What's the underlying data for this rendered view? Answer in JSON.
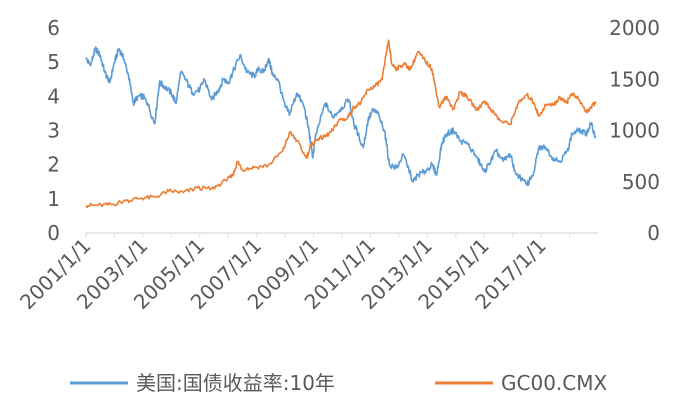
{
  "chart_data": {
    "type": "line",
    "title": "",
    "xlabel": "",
    "ylabel": "",
    "x_range": [
      "2001-01-01",
      "2018-12-31"
    ],
    "x_ticks": [
      "2001/1/1",
      "2003/1/1",
      "2005/1/1",
      "2007/1/1",
      "2009/1/1",
      "2011/1/1",
      "2013/1/1",
      "2015/1/1",
      "2017/1/1"
    ],
    "y_left": {
      "min": 0,
      "max": 6,
      "ticks": [
        "0",
        "1",
        "2",
        "3",
        "4",
        "5",
        "6"
      ]
    },
    "y_right": {
      "min": 0,
      "max": 2000,
      "ticks": [
        "0",
        "500",
        "1000",
        "1500",
        "2000"
      ]
    },
    "grid": false,
    "legend_position": "bottom",
    "series": [
      {
        "name": "美国:国债收益率:10年",
        "axis": "left",
        "color": "#5B9BD5",
        "points": [
          [
            "2001-01-01",
            5.1
          ],
          [
            "2001-03-01",
            4.9
          ],
          [
            "2001-05-01",
            5.4
          ],
          [
            "2001-07-01",
            5.2
          ],
          [
            "2001-09-01",
            4.7
          ],
          [
            "2001-11-01",
            4.4
          ],
          [
            "2002-01-01",
            5.0
          ],
          [
            "2002-03-01",
            5.4
          ],
          [
            "2002-05-01",
            5.1
          ],
          [
            "2002-07-01",
            4.6
          ],
          [
            "2002-09-01",
            3.8
          ],
          [
            "2002-11-01",
            4.0
          ],
          [
            "2003-01-01",
            4.0
          ],
          [
            "2003-03-01",
            3.8
          ],
          [
            "2003-06-01",
            3.2
          ],
          [
            "2003-08-01",
            4.4
          ],
          [
            "2003-10-01",
            4.3
          ],
          [
            "2004-01-01",
            4.1
          ],
          [
            "2004-03-01",
            3.8
          ],
          [
            "2004-05-01",
            4.7
          ],
          [
            "2004-07-01",
            4.5
          ],
          [
            "2004-10-01",
            4.1
          ],
          [
            "2005-01-01",
            4.2
          ],
          [
            "2005-03-01",
            4.5
          ],
          [
            "2005-06-01",
            3.9
          ],
          [
            "2005-09-01",
            4.2
          ],
          [
            "2005-11-01",
            4.5
          ],
          [
            "2006-01-01",
            4.4
          ],
          [
            "2006-03-01",
            4.7
          ],
          [
            "2006-06-01",
            5.2
          ],
          [
            "2006-09-01",
            4.7
          ],
          [
            "2006-12-01",
            4.6
          ],
          [
            "2007-02-01",
            4.8
          ],
          [
            "2007-04-01",
            4.7
          ],
          [
            "2007-06-01",
            5.1
          ],
          [
            "2007-08-01",
            4.6
          ],
          [
            "2007-10-01",
            4.5
          ],
          [
            "2008-01-01",
            3.7
          ],
          [
            "2008-03-01",
            3.5
          ],
          [
            "2008-06-01",
            4.1
          ],
          [
            "2008-09-01",
            3.7
          ],
          [
            "2008-11-01",
            3.0
          ],
          [
            "2008-12-20",
            2.2
          ],
          [
            "2009-02-01",
            2.9
          ],
          [
            "2009-06-01",
            3.8
          ],
          [
            "2009-09-01",
            3.4
          ],
          [
            "2009-12-01",
            3.6
          ],
          [
            "2010-04-01",
            3.9
          ],
          [
            "2010-06-01",
            3.2
          ],
          [
            "2010-10-01",
            2.5
          ],
          [
            "2010-12-01",
            3.3
          ],
          [
            "2011-02-01",
            3.6
          ],
          [
            "2011-04-01",
            3.5
          ],
          [
            "2011-07-01",
            3.0
          ],
          [
            "2011-09-01",
            2.0
          ],
          [
            "2011-12-01",
            1.9
          ],
          [
            "2012-03-01",
            2.3
          ],
          [
            "2012-07-01",
            1.5
          ],
          [
            "2012-09-01",
            1.7
          ],
          [
            "2012-12-01",
            1.8
          ],
          [
            "2013-03-01",
            2.0
          ],
          [
            "2013-05-01",
            1.7
          ],
          [
            "2013-07-01",
            2.6
          ],
          [
            "2013-09-01",
            2.9
          ],
          [
            "2013-12-01",
            3.0
          ],
          [
            "2014-03-01",
            2.7
          ],
          [
            "2014-06-01",
            2.6
          ],
          [
            "2014-10-01",
            2.2
          ],
          [
            "2015-01-01",
            1.8
          ],
          [
            "2015-03-01",
            2.0
          ],
          [
            "2015-06-01",
            2.4
          ],
          [
            "2015-09-01",
            2.1
          ],
          [
            "2015-12-01",
            2.3
          ],
          [
            "2016-02-01",
            1.8
          ],
          [
            "2016-07-01",
            1.4
          ],
          [
            "2016-10-01",
            1.8
          ],
          [
            "2016-12-01",
            2.5
          ],
          [
            "2017-03-01",
            2.5
          ],
          [
            "2017-06-01",
            2.2
          ],
          [
            "2017-09-01",
            2.1
          ],
          [
            "2017-12-01",
            2.4
          ],
          [
            "2018-02-01",
            2.9
          ],
          [
            "2018-05-01",
            3.0
          ],
          [
            "2018-08-01",
            2.9
          ],
          [
            "2018-10-01",
            3.2
          ],
          [
            "2018-12-01",
            2.8
          ]
        ]
      },
      {
        "name": "GC00.CMX",
        "axis": "right",
        "color": "#ED7D31",
        "points": [
          [
            "2001-01-01",
            270
          ],
          [
            "2001-06-01",
            268
          ],
          [
            "2001-12-01",
            278
          ],
          [
            "2002-06-01",
            315
          ],
          [
            "2002-12-01",
            340
          ],
          [
            "2003-06-01",
            350
          ],
          [
            "2003-12-01",
            410
          ],
          [
            "2004-06-01",
            395
          ],
          [
            "2004-12-01",
            440
          ],
          [
            "2005-06-01",
            430
          ],
          [
            "2005-12-01",
            510
          ],
          [
            "2006-03-01",
            560
          ],
          [
            "2006-05-01",
            700
          ],
          [
            "2006-07-01",
            620
          ],
          [
            "2006-12-01",
            640
          ],
          [
            "2007-06-01",
            660
          ],
          [
            "2007-12-01",
            800
          ],
          [
            "2008-03-01",
            980
          ],
          [
            "2008-06-01",
            900
          ],
          [
            "2008-10-01",
            730
          ],
          [
            "2008-12-01",
            860
          ],
          [
            "2009-03-01",
            920
          ],
          [
            "2009-06-01",
            940
          ],
          [
            "2009-09-01",
            1000
          ],
          [
            "2009-12-01",
            1110
          ],
          [
            "2010-03-01",
            1110
          ],
          [
            "2010-06-01",
            1230
          ],
          [
            "2010-09-01",
            1270
          ],
          [
            "2010-12-01",
            1400
          ],
          [
            "2011-03-01",
            1430
          ],
          [
            "2011-06-01",
            1500
          ],
          [
            "2011-08-20",
            1880
          ],
          [
            "2011-10-01",
            1650
          ],
          [
            "2011-12-01",
            1600
          ],
          [
            "2012-03-01",
            1650
          ],
          [
            "2012-06-01",
            1600
          ],
          [
            "2012-09-01",
            1770
          ],
          [
            "2012-12-01",
            1680
          ],
          [
            "2013-03-01",
            1600
          ],
          [
            "2013-04-20",
            1400
          ],
          [
            "2013-06-01",
            1230
          ],
          [
            "2013-09-01",
            1330
          ],
          [
            "2013-12-01",
            1210
          ],
          [
            "2014-03-01",
            1380
          ],
          [
            "2014-06-01",
            1320
          ],
          [
            "2014-10-01",
            1200
          ],
          [
            "2015-01-01",
            1290
          ],
          [
            "2015-04-01",
            1200
          ],
          [
            "2015-08-01",
            1090
          ],
          [
            "2015-12-01",
            1060
          ],
          [
            "2016-03-01",
            1250
          ],
          [
            "2016-07-01",
            1350
          ],
          [
            "2016-10-01",
            1270
          ],
          [
            "2016-12-01",
            1140
          ],
          [
            "2017-03-01",
            1250
          ],
          [
            "2017-06-01",
            1250
          ],
          [
            "2017-09-01",
            1320
          ],
          [
            "2017-12-01",
            1280
          ],
          [
            "2018-01-25",
            1360
          ],
          [
            "2018-05-01",
            1300
          ],
          [
            "2018-08-01",
            1180
          ],
          [
            "2018-10-01",
            1220
          ],
          [
            "2018-12-01",
            1280
          ]
        ]
      }
    ]
  }
}
